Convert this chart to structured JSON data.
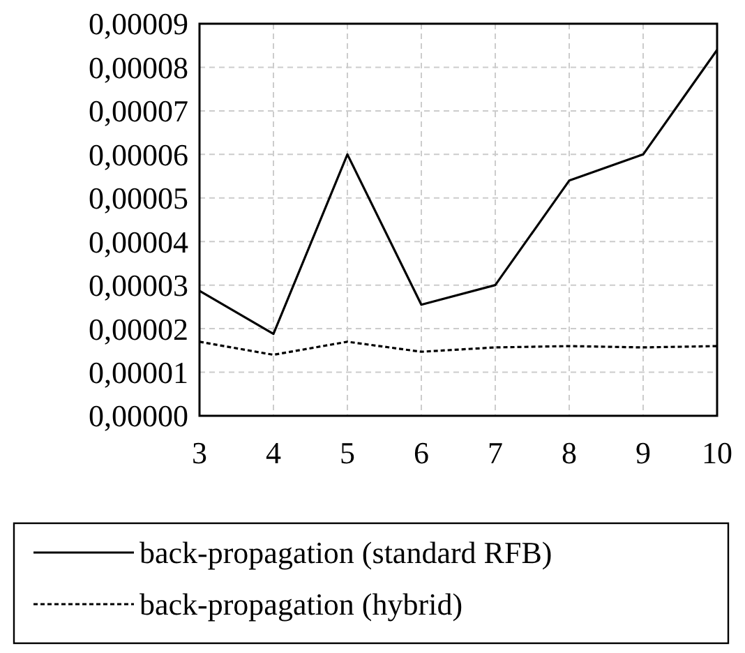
{
  "chart_data": {
    "type": "line",
    "x": [
      3,
      4,
      5,
      6,
      7,
      8,
      9,
      10
    ],
    "series": [
      {
        "name": "back-propagation (standard RFB)",
        "color": "#000000",
        "line_style": "solid",
        "values": [
          2.87e-05,
          1.88e-05,
          6e-05,
          2.55e-05,
          3e-05,
          5.4e-05,
          6e-05,
          8.4e-05
        ]
      },
      {
        "name": "back-propagation (hybrid)",
        "color": "#000000",
        "line_style": "dotted",
        "values": [
          1.7e-05,
          1.4e-05,
          1.7e-05,
          1.47e-05,
          1.57e-05,
          1.6e-05,
          1.57e-05,
          1.6e-05
        ]
      }
    ],
    "xlim": [
      3,
      10
    ],
    "xticks": [
      3,
      4,
      5,
      6,
      7,
      8,
      9,
      10
    ],
    "ylim": [
      0,
      9e-05
    ],
    "yticks": [
      {
        "value": 0,
        "label": "0,00000"
      },
      {
        "value": 1e-05,
        "label": "0,00001"
      },
      {
        "value": 2e-05,
        "label": "0,00002"
      },
      {
        "value": 3e-05,
        "label": "0,00003"
      },
      {
        "value": 4e-05,
        "label": "0,00004"
      },
      {
        "value": 5e-05,
        "label": "0,00005"
      },
      {
        "value": 6e-05,
        "label": "0,00006"
      },
      {
        "value": 7e-05,
        "label": "0,00007"
      },
      {
        "value": 8e-05,
        "label": "0,00008"
      },
      {
        "value": 9e-05,
        "label": "0,00009"
      }
    ],
    "grid": true,
    "legend": "bottom",
    "marker": "none"
  }
}
